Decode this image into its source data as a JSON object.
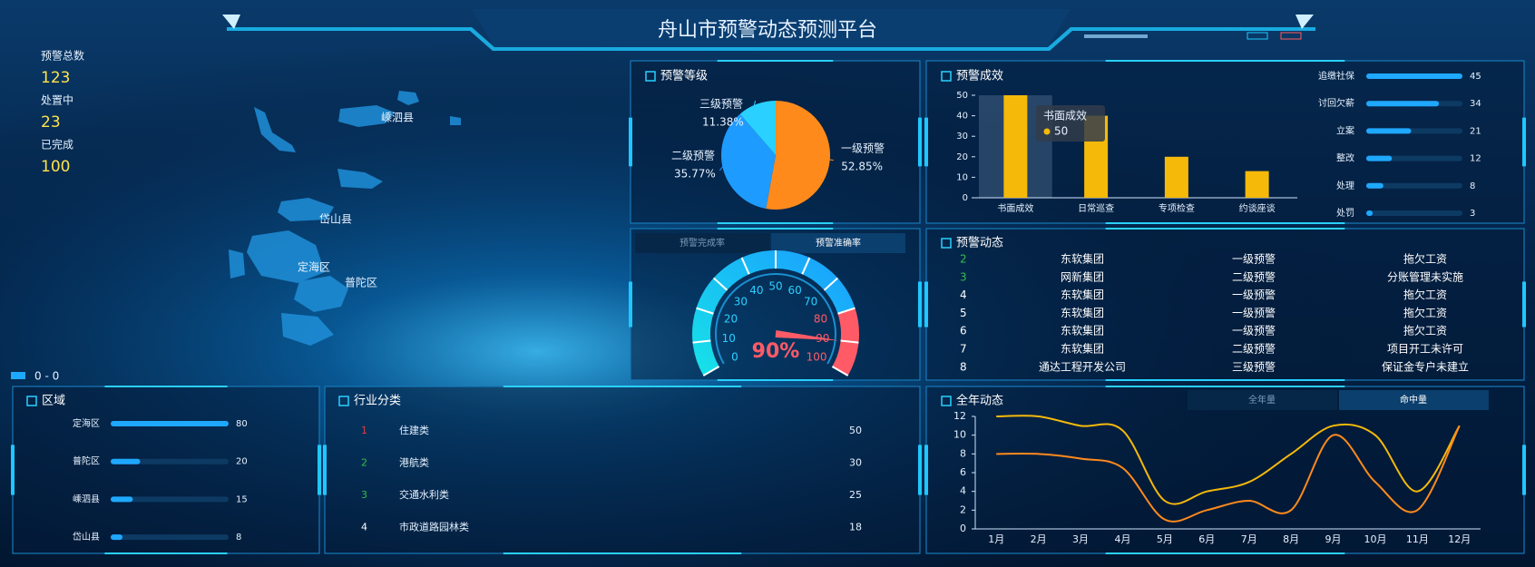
{
  "header": {
    "title": "舟山市预警动态预测平台"
  },
  "stats": [
    {
      "label": "预警总数",
      "value": 123
    },
    {
      "label": "处置中",
      "value": 23
    },
    {
      "label": "已完成",
      "value": 100
    }
  ],
  "map": {
    "labels": [
      "嵊泗县",
      "岱山县",
      "定海区",
      "普陀区"
    ],
    "legend": "0 - 0"
  },
  "level_chart": {
    "type": "pie",
    "title": "预警等级",
    "categories": [
      "一级预警",
      "二级预警",
      "三级预警"
    ],
    "values": [
      52.85,
      35.77,
      11.38
    ],
    "value_labels": [
      "52.85%",
      "35.77%",
      "11.38%"
    ],
    "colors": [
      "#ff8a1c",
      "#1e9bff",
      "#2ad0ff"
    ]
  },
  "rate_gauge": {
    "type": "gauge",
    "tabs": [
      "预警完成率",
      "预警准确率"
    ],
    "active_tab": 1,
    "value": 90,
    "value_label": "90%",
    "lim": [
      0,
      100
    ],
    "ticks": [
      0,
      10,
      20,
      30,
      40,
      50,
      60,
      70,
      80,
      90,
      100
    ],
    "danger_from": 80
  },
  "effect_chart": {
    "type": "bar",
    "title": "预警成效",
    "categories": [
      "书面成效",
      "日常巡查",
      "专项检查",
      "约谈座谈"
    ],
    "values": [
      50,
      40,
      20,
      13
    ],
    "color": "#f5b90a",
    "ylim": [
      0,
      50
    ],
    "yticks": [
      0,
      10,
      20,
      30,
      40,
      50
    ],
    "tooltip_index": 0
  },
  "effect_progress": {
    "type": "progress",
    "categories": [
      "追缴社保",
      "讨回欠薪",
      "立案",
      "整改",
      "处理",
      "处罚"
    ],
    "values": [
      45,
      34,
      21,
      12,
      8,
      3
    ],
    "color": "#1fa8ff"
  },
  "dynamics_table": {
    "title": "预警动态",
    "rows": [
      [
        2,
        "东软集团",
        "一级预警",
        "拖欠工资"
      ],
      [
        3,
        "网新集团",
        "二级预警",
        "分账管理未实施"
      ],
      [
        4,
        "东软集团",
        "一级预警",
        "拖欠工资"
      ],
      [
        5,
        "东软集团",
        "一级预警",
        "拖欠工资"
      ],
      [
        6,
        "东软集团",
        "一级预警",
        "拖欠工资"
      ],
      [
        7,
        "东软集团",
        "二级预警",
        "项目开工未许可"
      ],
      [
        8,
        "通达工程开发公司",
        "三级预警",
        "保证金专户未建立"
      ]
    ]
  },
  "region_chart": {
    "type": "progress",
    "title": "区域",
    "categories": [
      "定海区",
      "普陀区",
      "嵊泗县",
      "岱山县"
    ],
    "values": [
      80,
      20,
      15,
      8
    ],
    "color": "#1fa8ff"
  },
  "industry_list": {
    "title": "行业分类",
    "rows": [
      {
        "rank": 1,
        "name": "住建类",
        "value": 50
      },
      {
        "rank": 2,
        "name": "港航类",
        "value": 30
      },
      {
        "rank": 3,
        "name": "交通水利类",
        "value": 25
      },
      {
        "rank": 4,
        "name": "市政道路园林类",
        "value": 18
      }
    ]
  },
  "year_chart": {
    "type": "line",
    "title": "全年动态",
    "tabs": [
      "全年量",
      "命中量"
    ],
    "active_tab": 1,
    "categories": [
      "1月",
      "2月",
      "3月",
      "4月",
      "5月",
      "6月",
      "7月",
      "8月",
      "9月",
      "10月",
      "11月",
      "12月"
    ],
    "series": [
      {
        "color": "#f5b90a",
        "values": [
          12,
          12,
          11,
          10.5,
          3,
          4,
          5,
          8,
          11,
          10,
          4,
          11
        ]
      },
      {
        "color": "#ff8a1c",
        "values": [
          8,
          8,
          7.5,
          6.5,
          1,
          2,
          3,
          2,
          10,
          5,
          2,
          11
        ]
      }
    ],
    "ylim": [
      0,
      12
    ],
    "yticks": [
      0,
      2,
      4,
      6,
      8,
      10,
      12
    ]
  }
}
